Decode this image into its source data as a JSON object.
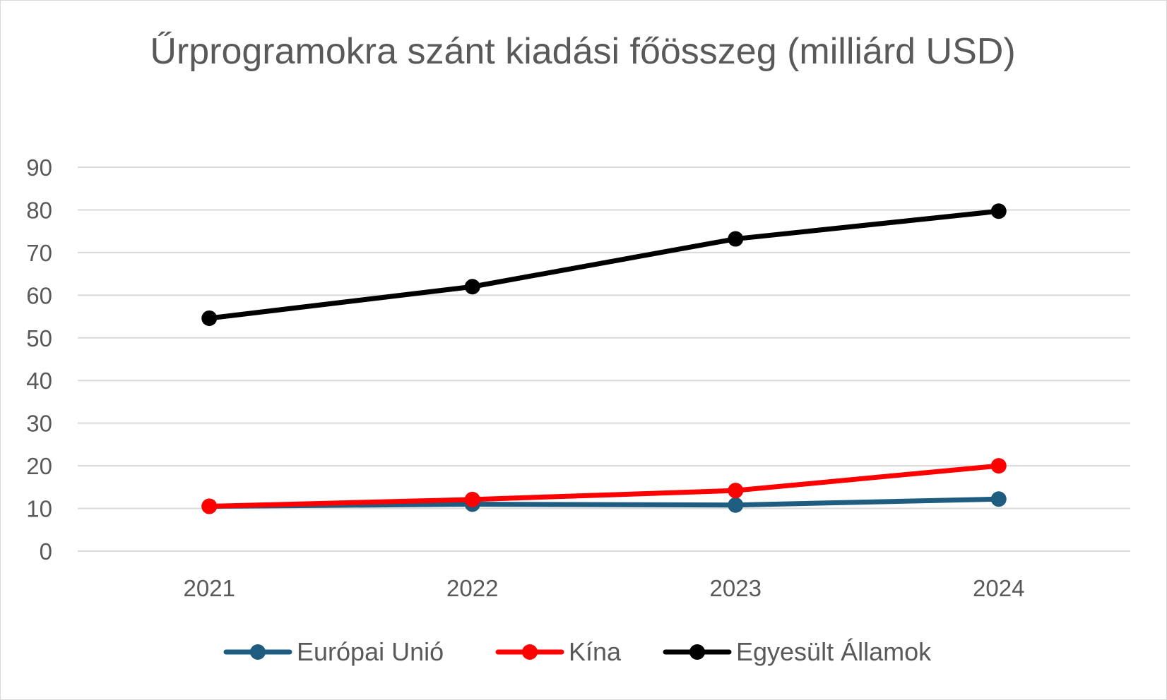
{
  "chart_data": {
    "type": "line",
    "title": "Űrprogramokra szánt kiadási főösszeg (milliárd USD)",
    "xlabel": "",
    "ylabel": "",
    "categories": [
      "2021",
      "2022",
      "2023",
      "2024"
    ],
    "ylim": [
      0,
      90
    ],
    "yticks": [
      0,
      10,
      20,
      30,
      40,
      50,
      60,
      70,
      80,
      90
    ],
    "grid": true,
    "legend_position": "bottom",
    "series": [
      {
        "name": "Európai Unió",
        "color": "#1f5d80",
        "values": [
          10.5,
          11.0,
          10.8,
          12.2
        ]
      },
      {
        "name": "Kína",
        "color": "#ff0000",
        "values": [
          10.5,
          12.1,
          14.2,
          20.0
        ]
      },
      {
        "name": "Egyesült Államok",
        "color": "#000000",
        "values": [
          54.6,
          62.0,
          73.2,
          79.7
        ]
      }
    ]
  }
}
